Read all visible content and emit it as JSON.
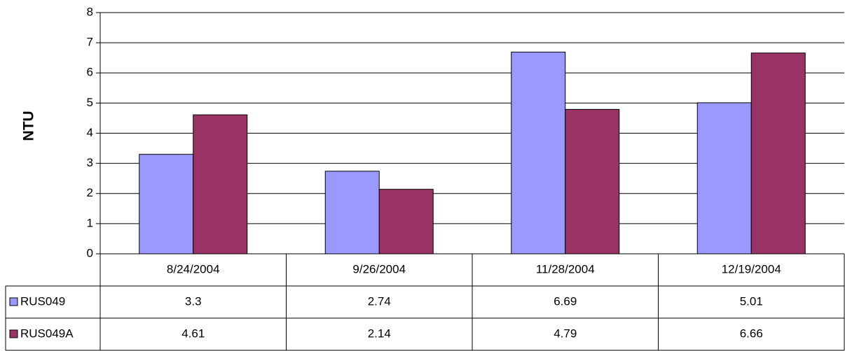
{
  "chart_data": {
    "type": "bar",
    "y_label": "NTU",
    "categories": [
      "8/24/2004",
      "9/26/2004",
      "11/28/2004",
      "12/19/2004"
    ],
    "series": [
      {
        "name": "RUS049",
        "color": "#9999ff",
        "values": [
          3.3,
          2.74,
          6.69,
          5.01
        ]
      },
      {
        "name": "RUS049A",
        "color": "#993366",
        "values": [
          4.61,
          2.14,
          4.79,
          6.66
        ]
      }
    ],
    "ylim": [
      0,
      8
    ],
    "yticks": [
      0,
      1,
      2,
      3,
      4,
      5,
      6,
      7,
      8
    ],
    "grid": true,
    "data_table": true
  }
}
